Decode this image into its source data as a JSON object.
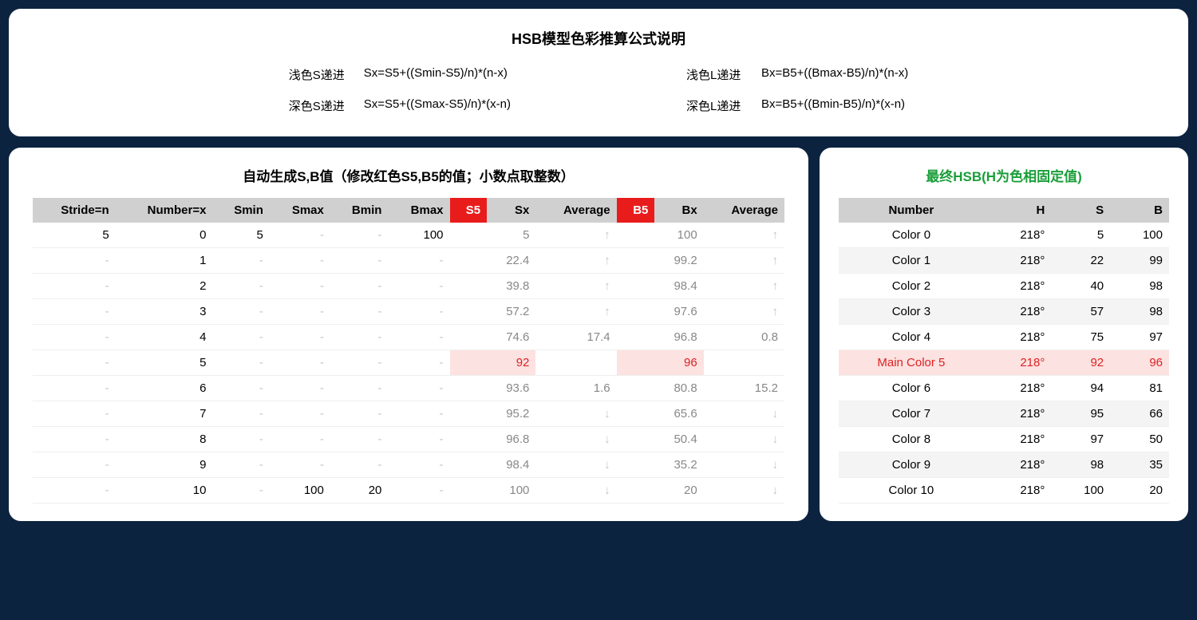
{
  "colors": {
    "page_bg": "#0c2340",
    "panel_bg": "#ffffff",
    "header_bg": "#d0d0d0",
    "red_header_bg": "#e91c1c",
    "pink_bg": "#fce2e1",
    "red_text": "#d22",
    "dash_color": "#c5c5c5",
    "green_title": "#1a9e3a",
    "gray_val": "#888"
  },
  "top": {
    "title": "HSB模型色彩推算公式说明",
    "left_formulas": [
      {
        "label": "浅色S递进",
        "formula": "Sx=S5+((Smin-S5)/n)*(n-x)"
      },
      {
        "label": "深色S递进",
        "formula": "Sx=S5+((Smax-S5)/n)*(x-n)"
      }
    ],
    "right_formulas": [
      {
        "label": "浅色L递进",
        "formula": "Bx=B5+((Bmax-B5)/n)*(n-x)"
      },
      {
        "label": "深色L递进",
        "formula": "Bx=B5+((Bmin-B5)/n)*(x-n)"
      }
    ]
  },
  "left_table": {
    "title": "自动生成S,B值（修改红色S5,B5的值；小数点取整数）",
    "columns": [
      {
        "label": "Stride=n",
        "red": false
      },
      {
        "label": "Number=x",
        "red": false
      },
      {
        "label": "Smin",
        "red": false
      },
      {
        "label": "Smax",
        "red": false
      },
      {
        "label": "Bmin",
        "red": false
      },
      {
        "label": "Bmax",
        "red": false
      },
      {
        "label": "S5",
        "red": true
      },
      {
        "label": "Sx",
        "red": false
      },
      {
        "label": "Average",
        "red": false
      },
      {
        "label": "B5",
        "red": true
      },
      {
        "label": "Bx",
        "red": false
      },
      {
        "label": "Average",
        "red": false
      }
    ],
    "rows": [
      {
        "stride": "5",
        "number": "0",
        "smin": "5",
        "smax": "-",
        "bmin": "-",
        "bmax": "100",
        "s5": "",
        "sx": "5",
        "avg1": "↑",
        "b5": "",
        "bx": "100",
        "avg2": "↑",
        "pink": false
      },
      {
        "stride": "-",
        "number": "1",
        "smin": "-",
        "smax": "-",
        "bmin": "-",
        "bmax": "-",
        "s5": "",
        "sx": "22.4",
        "avg1": "↑",
        "b5": "",
        "bx": "99.2",
        "avg2": "↑",
        "pink": false
      },
      {
        "stride": "-",
        "number": "2",
        "smin": "-",
        "smax": "-",
        "bmin": "-",
        "bmax": "-",
        "s5": "",
        "sx": "39.8",
        "avg1": "↑",
        "b5": "",
        "bx": "98.4",
        "avg2": "↑",
        "pink": false
      },
      {
        "stride": "-",
        "number": "3",
        "smin": "-",
        "smax": "-",
        "bmin": "-",
        "bmax": "-",
        "s5": "",
        "sx": "57.2",
        "avg1": "↑",
        "b5": "",
        "bx": "97.6",
        "avg2": "↑",
        "pink": false
      },
      {
        "stride": "-",
        "number": "4",
        "smin": "-",
        "smax": "-",
        "bmin": "-",
        "bmax": "-",
        "s5": "",
        "sx": "74.6",
        "avg1": "17.4",
        "b5": "",
        "bx": "96.8",
        "avg2": "0.8",
        "pink": false
      },
      {
        "stride": "-",
        "number": "5",
        "smin": "-",
        "smax": "-",
        "bmin": "-",
        "bmax": "-",
        "s5": "",
        "sx": "92",
        "avg1": "",
        "b5": "",
        "bx": "96",
        "avg2": "",
        "pink": true
      },
      {
        "stride": "-",
        "number": "6",
        "smin": "-",
        "smax": "-",
        "bmin": "-",
        "bmax": "-",
        "s5": "",
        "sx": "93.6",
        "avg1": "1.6",
        "b5": "",
        "bx": "80.8",
        "avg2": "15.2",
        "pink": false
      },
      {
        "stride": "-",
        "number": "7",
        "smin": "-",
        "smax": "-",
        "bmin": "-",
        "bmax": "-",
        "s5": "",
        "sx": "95.2",
        "avg1": "↓",
        "b5": "",
        "bx": "65.6",
        "avg2": "↓",
        "pink": false
      },
      {
        "stride": "-",
        "number": "8",
        "smin": "-",
        "smax": "-",
        "bmin": "-",
        "bmax": "-",
        "s5": "",
        "sx": "96.8",
        "avg1": "↓",
        "b5": "",
        "bx": "50.4",
        "avg2": "↓",
        "pink": false
      },
      {
        "stride": "-",
        "number": "9",
        "smin": "-",
        "smax": "-",
        "bmin": "-",
        "bmax": "-",
        "s5": "",
        "sx": "98.4",
        "avg1": "↓",
        "b5": "",
        "bx": "35.2",
        "avg2": "↓",
        "pink": false
      },
      {
        "stride": "-",
        "number": "10",
        "smin": "-",
        "smax": "100",
        "bmin": "20",
        "bmax": "-",
        "s5": "",
        "sx": "100",
        "avg1": "↓",
        "b5": "",
        "bx": "20",
        "avg2": "↓",
        "pink": false
      }
    ]
  },
  "right_table": {
    "title": "最终HSB(H为色相固定值)",
    "columns": [
      "Number",
      "H",
      "S",
      "B"
    ],
    "rows": [
      {
        "number": "Color 0",
        "h": "218°",
        "s": "5",
        "b": "100",
        "main": false
      },
      {
        "number": "Color 1",
        "h": "218°",
        "s": "22",
        "b": "99",
        "main": false
      },
      {
        "number": "Color 2",
        "h": "218°",
        "s": "40",
        "b": "98",
        "main": false
      },
      {
        "number": "Color 3",
        "h": "218°",
        "s": "57",
        "b": "98",
        "main": false
      },
      {
        "number": "Color 4",
        "h": "218°",
        "s": "75",
        "b": "97",
        "main": false
      },
      {
        "number": "Main Color 5",
        "h": "218°",
        "s": "92",
        "b": "96",
        "main": true
      },
      {
        "number": "Color 6",
        "h": "218°",
        "s": "94",
        "b": "81",
        "main": false
      },
      {
        "number": "Color 7",
        "h": "218°",
        "s": "95",
        "b": "66",
        "main": false
      },
      {
        "number": "Color 8",
        "h": "218°",
        "s": "97",
        "b": "50",
        "main": false
      },
      {
        "number": "Color 9",
        "h": "218°",
        "s": "98",
        "b": "35",
        "main": false
      },
      {
        "number": "Color 10",
        "h": "218°",
        "s": "100",
        "b": "20",
        "main": false
      }
    ]
  }
}
